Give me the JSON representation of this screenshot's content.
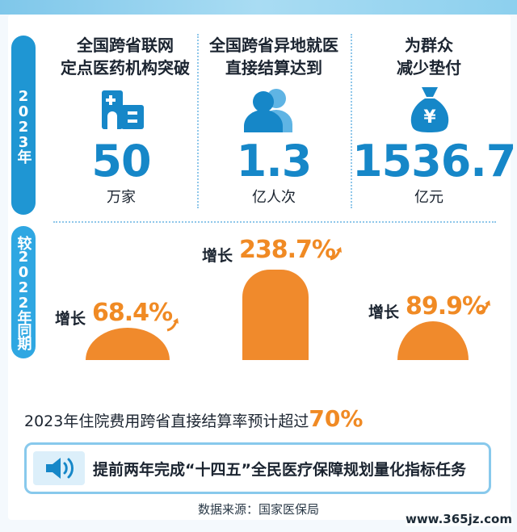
{
  "side_tabs": {
    "year": "2023年",
    "compare": "较2022年同期"
  },
  "columns": [
    {
      "title_line1": "全国跨省联网",
      "title_line2": "定点医药机构突破",
      "value": "50",
      "unit": "万家",
      "icon": "hospital-icon",
      "growth_label": "增长",
      "growth_value": "68.4%",
      "growth_fraction": 0.684
    },
    {
      "title_line1": "全国跨省异地就医",
      "title_line2": "直接结算达到",
      "value": "1.3",
      "unit": "亿人次",
      "icon": "people-icon",
      "growth_label": "增长",
      "growth_value": "238.7%",
      "growth_fraction": 2.387
    },
    {
      "title_line1": "为群众",
      "title_line2": "减少垫付",
      "value": "1536.7",
      "unit": "亿元",
      "icon": "money-bag-icon",
      "growth_label": "增长",
      "growth_value": "89.9%",
      "growth_fraction": 0.899
    }
  ],
  "summary": {
    "text": "2023年住院费用跨省直接结算率预计超过",
    "percent": "70%"
  },
  "banner": {
    "text": "提前两年完成“十四五”全民医疗保障规划量化指标任务",
    "icon": "speaker-icon"
  },
  "source": "数据来源：国家医保局",
  "watermark": "www.365jz.com",
  "colors": {
    "blue_primary": "#1687c8",
    "tab_blue": "#1f96d3",
    "orange": "#f08a2c"
  }
}
